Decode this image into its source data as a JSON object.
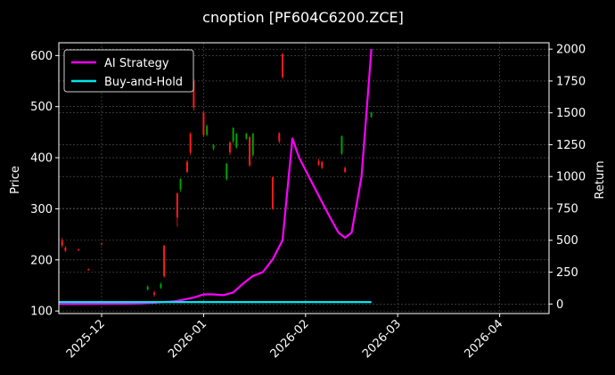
{
  "chart_data": {
    "type": "line",
    "title": "cnoption [PF604C6200.ZCE]",
    "xlabel": "",
    "ylabel": "Price",
    "y2label": "Return",
    "x_tick_labels": [
      "2025-12",
      "2026-01",
      "2026-02",
      "2026-03",
      "2026-04"
    ],
    "x_ticks_days": [
      30,
      61,
      92,
      120,
      151
    ],
    "xlim_days": [
      17,
      166
    ],
    "ylim": [
      95,
      625
    ],
    "y_ticks": [
      100,
      200,
      300,
      400,
      500,
      600
    ],
    "y2lim": [
      -75,
      2050
    ],
    "y2_ticks": [
      0,
      250,
      500,
      750,
      1000,
      1250,
      1500,
      1750,
      2000
    ],
    "grid": true,
    "legend_position": "upper-left",
    "colors": {
      "background": "#000000",
      "ai_strategy": "#ff00ff",
      "buy_and_hold": "#00e5ee",
      "candle_up": "#00a000",
      "candle_down": "#ff1a1a",
      "grid": "#5a5a5a",
      "text": "#ffffff"
    },
    "series": [
      {
        "name": "AI Strategy",
        "axis": "right",
        "x": [
          17,
          27,
          37,
          42,
          47,
          52,
          55,
          58,
          61,
          64,
          67,
          70,
          73,
          76,
          79,
          82,
          85,
          88,
          90,
          93,
          96,
          99,
          102,
          104,
          106,
          109,
          112
        ],
        "y": [
          0,
          1,
          2,
          5,
          12,
          20,
          35,
          50,
          75,
          75,
          70,
          90,
          160,
          220,
          250,
          350,
          500,
          1300,
          1150,
          1000,
          850,
          700,
          560,
          520,
          560,
          1000,
          2000
        ]
      },
      {
        "name": "Buy-and-Hold",
        "axis": "right",
        "x": [
          17,
          112
        ],
        "y": [
          15,
          15
        ]
      }
    ],
    "candles": [
      {
        "x": 18,
        "open": 238,
        "close": 228,
        "high": 243,
        "low": 224
      },
      {
        "x": 19,
        "open": 224,
        "close": 218,
        "high": 227,
        "low": 215
      },
      {
        "x": 23,
        "open": 221,
        "close": 219,
        "high": 222,
        "low": 217
      },
      {
        "x": 26,
        "open": 182,
        "close": 180,
        "high": 183,
        "low": 179
      },
      {
        "x": 30,
        "open": 232,
        "close": 230,
        "high": 233,
        "low": 229
      },
      {
        "x": 44,
        "open": 142,
        "close": 148,
        "high": 150,
        "low": 140
      },
      {
        "x": 46,
        "open": 136,
        "close": 132,
        "high": 140,
        "low": 128
      },
      {
        "x": 48,
        "open": 145,
        "close": 153,
        "high": 156,
        "low": 143
      },
      {
        "x": 49,
        "open": 228,
        "close": 168,
        "high": 229,
        "low": 165
      },
      {
        "x": 53,
        "open": 330,
        "close": 283,
        "high": 332,
        "low": 265
      },
      {
        "x": 54,
        "open": 338,
        "close": 358,
        "high": 360,
        "low": 333
      },
      {
        "x": 56,
        "open": 392,
        "close": 372,
        "high": 395,
        "low": 370
      },
      {
        "x": 57,
        "open": 447,
        "close": 410,
        "high": 450,
        "low": 405
      },
      {
        "x": 58,
        "open": 550,
        "close": 498,
        "high": 555,
        "low": 492
      },
      {
        "x": 61,
        "open": 488,
        "close": 444,
        "high": 492,
        "low": 440
      },
      {
        "x": 62,
        "open": 445,
        "close": 462,
        "high": 465,
        "low": 442
      },
      {
        "x": 64,
        "open": 418,
        "close": 425,
        "high": 427,
        "low": 414
      },
      {
        "x": 68,
        "open": 358,
        "close": 388,
        "high": 390,
        "low": 355
      },
      {
        "x": 69,
        "open": 430,
        "close": 410,
        "high": 432,
        "low": 405
      },
      {
        "x": 70,
        "open": 432,
        "close": 458,
        "high": 460,
        "low": 428
      },
      {
        "x": 71,
        "open": 420,
        "close": 447,
        "high": 448,
        "low": 418
      },
      {
        "x": 74,
        "open": 437,
        "close": 447,
        "high": 449,
        "low": 435
      },
      {
        "x": 75,
        "open": 440,
        "close": 385,
        "high": 443,
        "low": 382
      },
      {
        "x": 76,
        "open": 405,
        "close": 447,
        "high": 449,
        "low": 402
      },
      {
        "x": 82,
        "open": 362,
        "close": 300,
        "high": 363,
        "low": 298
      },
      {
        "x": 84,
        "open": 448,
        "close": 432,
        "high": 450,
        "low": 428
      },
      {
        "x": 85,
        "open": 603,
        "close": 558,
        "high": 605,
        "low": 555
      },
      {
        "x": 96,
        "open": 394,
        "close": 386,
        "high": 398,
        "low": 384
      },
      {
        "x": 97,
        "open": 392,
        "close": 380,
        "high": 394,
        "low": 378
      },
      {
        "x": 103,
        "open": 408,
        "close": 442,
        "high": 444,
        "low": 405
      },
      {
        "x": 104,
        "open": 380,
        "close": 372,
        "high": 383,
        "low": 370
      },
      {
        "x": 112,
        "open": 480,
        "close": 488,
        "high": 490,
        "low": 478
      }
    ]
  }
}
